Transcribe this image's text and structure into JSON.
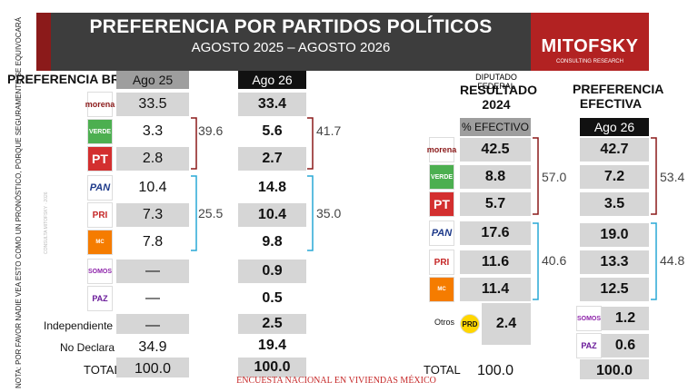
{
  "header": {
    "title": "PREFERENCIA POR PARTIDOS POLÍTICOS",
    "subtitle": "AGOSTO 2025 – AGOSTO 2026"
  },
  "logo": {
    "brand": "MITOFSKY",
    "tagline": "CONSULTING RESEARCH"
  },
  "side_note": "NOTA: POR FAVOR NADIE VEA ESTO COMO UN PRONÓSTICO, PORQUE SEGURAMENTE SE EQUIVOCARÁ",
  "watermark": "CONSULTA MITOFSKY · 2026",
  "footer": "ENCUESTA NACIONAL EN VIVIENDAS MÉXICO",
  "colors": {
    "header_bg": "#3d3d3d",
    "brand_red": "#b22222",
    "bracket_red": "#8b1a1a",
    "bracket_blue": "#29a9d6",
    "cell_grey": "#d6d6d6"
  },
  "chart_data": [
    {
      "type": "table",
      "title": "PREFERENCIA BRUTA",
      "columns": [
        "Ago 25",
        "Ago 26"
      ],
      "rows": [
        {
          "party": "morena",
          "logo": "morena-logo",
          "values": [
            "33.5",
            "33.4"
          ]
        },
        {
          "party": "VERDE",
          "logo": "verde-logo",
          "values": [
            "3.3",
            "5.6"
          ]
        },
        {
          "party": "PT",
          "logo": "pt-logo",
          "values": [
            "2.8",
            "2.7"
          ]
        },
        {
          "party": "PAN",
          "logo": "pan-logo",
          "values": [
            "10.4",
            "14.8"
          ]
        },
        {
          "party": "PRI",
          "logo": "pri-logo",
          "values": [
            "7.3",
            "10.4"
          ]
        },
        {
          "party": "MOVIMIENTO CIUDADANO",
          "logo": "mc-logo",
          "values": [
            "7.8",
            "9.8"
          ]
        },
        {
          "party": "SOMOS",
          "logo": "somos-logo",
          "values": [
            "—",
            "0.9"
          ]
        },
        {
          "party": "PAZ",
          "logo": "paz-logo",
          "values": [
            "—",
            "0.5"
          ]
        },
        {
          "party": "Independiente",
          "values": [
            "—",
            "2.5"
          ]
        },
        {
          "party": "No Declara",
          "values": [
            "34.9",
            "19.4"
          ]
        },
        {
          "party": "TOTAL",
          "values": [
            "100.0",
            "100.0"
          ]
        }
      ],
      "brackets": [
        {
          "group": "morena-verde-pt",
          "values": [
            "39.6",
            "41.7"
          ]
        },
        {
          "group": "pan-pri-mc",
          "values": [
            "25.5",
            "35.0"
          ]
        }
      ]
    },
    {
      "type": "table",
      "title": "RESULTADO 2024",
      "supertitle": "DIPUTADO FEDERAL",
      "columns": [
        "% EFECTIVO"
      ],
      "rows": [
        {
          "party": "morena",
          "logo": "morena-logo",
          "values": [
            "42.5"
          ]
        },
        {
          "party": "VERDE",
          "logo": "verde-logo",
          "values": [
            "8.8"
          ]
        },
        {
          "party": "PT",
          "logo": "pt-logo",
          "values": [
            "5.7"
          ]
        },
        {
          "party": "PAN",
          "logo": "pan-logo",
          "values": [
            "17.6"
          ]
        },
        {
          "party": "PRI",
          "logo": "pri-logo",
          "values": [
            "11.6"
          ]
        },
        {
          "party": "MOVIMIENTO CIUDADANO",
          "logo": "mc-logo",
          "values": [
            "11.4"
          ]
        },
        {
          "party": "Otros",
          "logo": "prd-logo",
          "values": [
            "2.4"
          ]
        },
        {
          "party": "TOTAL",
          "values": [
            "100.0"
          ]
        }
      ],
      "brackets": [
        {
          "group": "morena-verde-pt",
          "values": [
            "57.0"
          ]
        },
        {
          "group": "pan-pri-mc",
          "values": [
            "40.6"
          ]
        }
      ]
    },
    {
      "type": "table",
      "title": "PREFERENCIA EFECTIVA",
      "columns": [
        "Ago 26"
      ],
      "rows": [
        {
          "party": "morena",
          "values": [
            "42.7"
          ]
        },
        {
          "party": "VERDE",
          "values": [
            "7.2"
          ]
        },
        {
          "party": "PT",
          "values": [
            "3.5"
          ]
        },
        {
          "party": "PAN",
          "values": [
            "19.0"
          ]
        },
        {
          "party": "PRI",
          "values": [
            "13.3"
          ]
        },
        {
          "party": "MOVIMIENTO CIUDADANO",
          "values": [
            "12.5"
          ]
        },
        {
          "party": "SOMOS",
          "logo": "somos-logo",
          "values": [
            "1.2"
          ]
        },
        {
          "party": "PAZ",
          "logo": "paz-logo",
          "values": [
            "0.6"
          ]
        },
        {
          "party": "TOTAL",
          "values": [
            "100.0"
          ]
        }
      ],
      "brackets": [
        {
          "group": "morena-verde-pt",
          "values": [
            "53.4"
          ]
        },
        {
          "group": "pan-pri-mc",
          "values": [
            "44.8"
          ]
        }
      ]
    }
  ]
}
